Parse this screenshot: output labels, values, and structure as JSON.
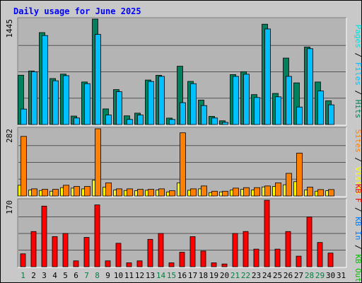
{
  "title": "Daily usage for June 2025",
  "colors": {
    "background": "#c8c8c8",
    "plot": "#b4b4b4",
    "grid": "#555555",
    "title": "#0000ff",
    "axis_text": "#000000",
    "weekend": "#008040",
    "hits": "#00805c",
    "files": "#00c0ff",
    "pages": "#00e0e0",
    "visits": "#ffff00",
    "sites": "#ff8000",
    "kb_out": "#00c000",
    "kb_in": "#0080ff",
    "kb_f": "#ff0000"
  },
  "chart_data": [
    {
      "type": "bar",
      "panel": "top",
      "ymax_label": "1445",
      "ylim": [
        0,
        1445
      ],
      "legend_orientation": "vertical-right",
      "legend": [
        {
          "text": "Pages",
          "color_key": "pages"
        },
        {
          "text": " / ",
          "color_key": "axis_text"
        },
        {
          "text": "Files",
          "color_key": "files"
        },
        {
          "text": " / ",
          "color_key": "axis_text"
        },
        {
          "text": "Hits",
          "color_key": "hits"
        }
      ],
      "categories": [
        "1",
        "2",
        "3",
        "4",
        "5",
        "6",
        "7",
        "8",
        "9",
        "10",
        "11",
        "12",
        "13",
        "14",
        "15",
        "16",
        "17",
        "18",
        "19",
        "20",
        "21",
        "22",
        "23",
        "24",
        "25",
        "26",
        "27",
        "28",
        "29",
        "30",
        "31"
      ],
      "series": [
        {
          "name": "Hits",
          "color_key": "hits",
          "values": [
            676,
            734,
            1260,
            630,
            691,
            116,
            583,
            1445,
            214,
            479,
            119,
            156,
            610,
            675,
            88,
            799,
            591,
            335,
            112,
            51,
            684,
            724,
            410,
            1375,
            426,
            911,
            571,
            1062,
            583,
            325,
            0
          ]
        },
        {
          "name": "Files",
          "color_key": "files",
          "values": [
            212,
            723,
            1220,
            600,
            670,
            90,
            560,
            1235,
            130,
            450,
            70,
            130,
            590,
            660,
            70,
            300,
            560,
            260,
            90,
            30,
            660,
            690,
            370,
            1310,
            380,
            660,
            240,
            1040,
            460,
            270,
            0
          ]
        }
      ]
    },
    {
      "type": "bar",
      "panel": "middle",
      "ymax_label": "282",
      "ylim": [
        0,
        282
      ],
      "legend_orientation": "vertical-right",
      "legend": [
        {
          "text": "Sites",
          "color_key": "sites"
        },
        {
          "text": " / ",
          "color_key": "axis_text"
        },
        {
          "text": "Visits",
          "color_key": "visits"
        }
      ],
      "series": [
        {
          "name": "Visits",
          "color_key": "visits",
          "values": [
            45,
            25,
            23,
            20,
            35,
            33,
            30,
            66,
            37,
            25,
            23,
            22,
            24,
            25,
            17,
            55,
            24,
            30,
            14,
            17,
            25,
            28,
            25,
            38,
            40,
            47,
            60,
            25,
            20,
            22,
            0
          ]
        },
        {
          "name": "Sites",
          "color_key": "sites",
          "values": [
            250,
            30,
            28,
            28,
            45,
            40,
            40,
            282,
            55,
            30,
            30,
            28,
            28,
            30,
            22,
            265,
            30,
            42,
            20,
            20,
            33,
            35,
            35,
            42,
            55,
            95,
            180,
            37,
            27,
            27,
            0
          ]
        }
      ]
    },
    {
      "type": "bar",
      "panel": "bottom",
      "ymax_label": "170",
      "ylim": [
        0,
        170
      ],
      "legend_orientation": "vertical-right",
      "legend": [
        {
          "text": "KB F",
          "color_key": "kb_f"
        },
        {
          "text": " / ",
          "color_key": "axis_text"
        },
        {
          "text": "KB In",
          "color_key": "kb_in"
        },
        {
          "text": " / ",
          "color_key": "axis_text"
        },
        {
          "text": "KB Out",
          "color_key": "kb_out"
        }
      ],
      "series": [
        {
          "name": "KB F",
          "color_key": "kb_f",
          "values": [
            33,
            90,
            155,
            77,
            85,
            15,
            75,
            158,
            15,
            60,
            10,
            15,
            70,
            85,
            10,
            37,
            77,
            40,
            10,
            7,
            85,
            90,
            45,
            170,
            45,
            90,
            27,
            127,
            62,
            35,
            0
          ]
        }
      ]
    }
  ],
  "weekend_days": [
    "1",
    "7",
    "8",
    "14",
    "15",
    "21",
    "22",
    "28",
    "29"
  ]
}
